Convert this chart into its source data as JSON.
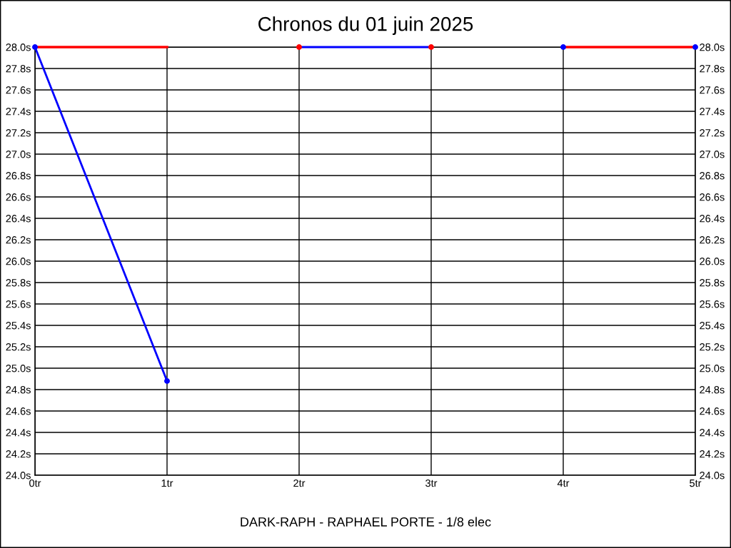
{
  "chart_data": {
    "type": "line",
    "title": "Chronos du 01 juin 2025",
    "annotations": [
      "DARK-RAPH - RAPHAEL PORTE - 1/8 elec"
    ],
    "series": [
      {
        "color": "#ff0000",
        "marker": "none",
        "x": [
          0,
          1
        ],
        "values": [
          28.0,
          28.0
        ]
      },
      {
        "color": "#0000ff",
        "marker": "none",
        "x": [
          0,
          1
        ],
        "values": [
          28.0,
          24.88
        ]
      },
      {
        "color": "#0000ff",
        "marker": "none",
        "x": [
          2,
          3
        ],
        "values": [
          28.0,
          28.0
        ]
      },
      {
        "color": "#ff0000",
        "marker": "none",
        "x": [
          4,
          5
        ],
        "values": [
          28.0,
          28.0
        ]
      },
      {
        "type": "scatter",
        "marker": "circle",
        "color": "#ff0000",
        "x": [
          2,
          3
        ],
        "values": [
          28.0,
          28.0
        ]
      },
      {
        "type": "scatter",
        "marker": "circle",
        "color": "#0000ff",
        "x": [
          0,
          1,
          4,
          5
        ],
        "values": [
          28.0,
          24.88,
          28.0,
          28.0
        ]
      }
    ],
    "xlim": [
      0,
      5
    ],
    "xticks": [
      {
        "value": 0,
        "label": "0tr"
      },
      {
        "value": 1,
        "label": "1tr"
      },
      {
        "value": 2,
        "label": "2tr"
      },
      {
        "value": 3,
        "label": "3tr"
      },
      {
        "value": 4,
        "label": "4tr"
      },
      {
        "value": 5,
        "label": "5tr"
      }
    ],
    "ylim": [
      24.0,
      28.0
    ],
    "yticks": [
      {
        "value": 24.0,
        "label": "24.0s"
      },
      {
        "value": 24.2,
        "label": "24.2s"
      },
      {
        "value": 24.4,
        "label": "24.4s"
      },
      {
        "value": 24.6,
        "label": "24.6s"
      },
      {
        "value": 24.8,
        "label": "24.8s"
      },
      {
        "value": 25.0,
        "label": "25.0s"
      },
      {
        "value": 25.2,
        "label": "25.2s"
      },
      {
        "value": 25.4,
        "label": "25.4s"
      },
      {
        "value": 25.6,
        "label": "25.6s"
      },
      {
        "value": 25.8,
        "label": "25.8s"
      },
      {
        "value": 26.0,
        "label": "26.0s"
      },
      {
        "value": 26.2,
        "label": "26.2s"
      },
      {
        "value": 26.4,
        "label": "26.4s"
      },
      {
        "value": 26.6,
        "label": "26.6s"
      },
      {
        "value": 26.8,
        "label": "26.8s"
      },
      {
        "value": 27.0,
        "label": "27.0s"
      },
      {
        "value": 27.2,
        "label": "27.2s"
      },
      {
        "value": 27.4,
        "label": "27.4s"
      },
      {
        "value": 27.6,
        "label": "27.6s"
      },
      {
        "value": 27.8,
        "label": "27.8s"
      },
      {
        "value": 28.0,
        "label": "28.0s"
      }
    ],
    "y2lim": [
      24.0,
      28.0
    ],
    "y2ticks": [
      {
        "value": 24.0,
        "label": "24.0s"
      },
      {
        "value": 24.2,
        "label": "24.2s"
      },
      {
        "value": 24.4,
        "label": "24.4s"
      },
      {
        "value": 24.6,
        "label": "24.6s"
      },
      {
        "value": 24.8,
        "label": "24.8s"
      },
      {
        "value": 25.0,
        "label": "25.0s"
      },
      {
        "value": 25.2,
        "label": "25.2s"
      },
      {
        "value": 25.4,
        "label": "25.4s"
      },
      {
        "value": 25.6,
        "label": "25.6s"
      },
      {
        "value": 25.8,
        "label": "25.8s"
      },
      {
        "value": 26.0,
        "label": "26.0s"
      },
      {
        "value": 26.2,
        "label": "26.2s"
      },
      {
        "value": 26.4,
        "label": "26.4s"
      },
      {
        "value": 26.6,
        "label": "26.6s"
      },
      {
        "value": 26.8,
        "label": "26.8s"
      },
      {
        "value": 27.0,
        "label": "27.0s"
      },
      {
        "value": 27.2,
        "label": "27.2s"
      },
      {
        "value": 27.4,
        "label": "27.4s"
      },
      {
        "value": 27.6,
        "label": "27.6s"
      },
      {
        "value": 27.8,
        "label": "27.8s"
      },
      {
        "value": 28.0,
        "label": "28.0s"
      }
    ],
    "grid": true,
    "legend": false,
    "line_style": "solid"
  }
}
